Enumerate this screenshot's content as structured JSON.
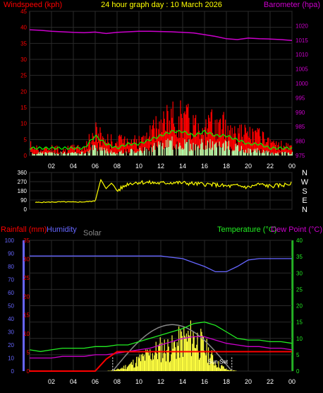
{
  "colors": {
    "windspeed": "#ff0000",
    "gust_fill": "#ff0000",
    "avg_wind": "#00ff00",
    "wind_fill": "#aaffaa",
    "barometer": "#cc00cc",
    "direction": "#ffff00",
    "rainfall": "#ff0000",
    "humidity": "#6666ff",
    "solar": "#888888",
    "solar_fill": "#ffff40",
    "temperature": "#22ee22",
    "dewpoint": "#cc00cc",
    "grid": "#2a2a2a",
    "title": "#ffff00",
    "white": "#ffffff"
  },
  "chart_data": [
    {
      "id": "wind-baro",
      "type": "area",
      "title": "24 hour graph day : 10 March 2026",
      "left_axis_label": "Windspeed (kph)",
      "right_axis_label": "Barometer (hpa)",
      "x_ticks": [
        "02",
        "04",
        "06",
        "08",
        "10",
        "12",
        "14",
        "16",
        "18",
        "20",
        "22",
        "00"
      ],
      "left_ticks": [
        0,
        5,
        10,
        15,
        20,
        25,
        30,
        35,
        40,
        45
      ],
      "left_ylim": [
        0,
        45
      ],
      "right_ticks": [
        975,
        980,
        985,
        990,
        995,
        1000,
        1005,
        1010,
        1015,
        1020
      ],
      "right_ylim": [
        975,
        1025
      ],
      "hours": [
        0,
        1,
        2,
        3,
        4,
        5,
        6,
        7,
        8,
        9,
        10,
        11,
        12,
        13,
        14,
        15,
        16,
        17,
        18,
        19,
        20,
        21,
        22,
        23,
        24
      ],
      "series": [
        {
          "name": "Barometer",
          "values": [
            1018.6,
            1018.4,
            1018.1,
            1017.9,
            1017.7,
            1017.6,
            1017.8,
            1017.3,
            1017.7,
            1017.9,
            1018.1,
            1018.1,
            1018.0,
            1017.9,
            1017.7,
            1017.5,
            1016.9,
            1016.3,
            1015.5,
            1015.2,
            1015.7,
            1015.5,
            1015.4,
            1015.2,
            1014.9
          ]
        },
        {
          "name": "Gust",
          "values": [
            4,
            2,
            3,
            2,
            3,
            3,
            9,
            6,
            5,
            7,
            5,
            8,
            12,
            14,
            15,
            12,
            13,
            11,
            11,
            9,
            8,
            7,
            4,
            4,
            3
          ]
        },
        {
          "name": "Average",
          "values": [
            1,
            1,
            1,
            1,
            1,
            1,
            4,
            2,
            1,
            2,
            2,
            3,
            4,
            5,
            5,
            4,
            5,
            4,
            4,
            3,
            2,
            2,
            1,
            1,
            1
          ]
        }
      ]
    },
    {
      "id": "wind-direction",
      "type": "line",
      "left_ticks": [
        0,
        90,
        180,
        270,
        360
      ],
      "ylim": [
        0,
        360
      ],
      "compass_labels": [
        "N",
        "W",
        "S",
        "E",
        "N"
      ],
      "hours": [
        0,
        1,
        2,
        3,
        4,
        5,
        6,
        6.5,
        7,
        7.5,
        8,
        9,
        10,
        11,
        12,
        13,
        14,
        15,
        16,
        17,
        18,
        19,
        20,
        21,
        22,
        23,
        24
      ],
      "values": [
        65,
        68,
        70,
        72,
        70,
        72,
        80,
        290,
        200,
        260,
        180,
        250,
        265,
        260,
        255,
        262,
        258,
        250,
        245,
        240,
        225,
        230,
        215,
        245,
        225,
        235,
        250
      ]
    },
    {
      "id": "temp-humidity",
      "type": "line",
      "label_rainfall": "Rainfall (mm)",
      "label_humidity": "Humidity",
      "label_solar": "Solar",
      "label_temperature": "Temperature (°C)",
      "label_dewpoint": "Dew Point (°C)",
      "annotation_sunset": "Sun Set",
      "humidity_ticks": [
        0,
        10,
        20,
        30,
        40,
        50,
        60,
        70,
        80,
        90,
        100
      ],
      "humidity_ylim": [
        0,
        100
      ],
      "rain_ticks": [
        0,
        5,
        10,
        15,
        20,
        25,
        30,
        35
      ],
      "rain_ylim": [
        0,
        35
      ],
      "temp_ticks": [
        0,
        5,
        10,
        15,
        20,
        25,
        30,
        35,
        40
      ],
      "temp_ylim": [
        0,
        40
      ],
      "hours": [
        0,
        1,
        2,
        3,
        4,
        5,
        6,
        7,
        8,
        9,
        10,
        11,
        12,
        13,
        14,
        15,
        16,
        17,
        18,
        19,
        20,
        21,
        22,
        23,
        24
      ],
      "series": [
        {
          "name": "Humidity",
          "values": [
            88,
            88,
            88,
            88,
            88,
            88,
            88,
            88,
            88,
            88,
            88,
            88,
            88,
            87,
            86,
            83,
            80,
            76,
            76,
            80,
            85,
            86,
            86,
            86,
            86
          ]
        },
        {
          "name": "Temperature",
          "values": [
            6.5,
            6,
            6.5,
            7,
            7,
            7,
            7.5,
            7.5,
            8,
            8,
            9,
            10,
            11,
            12,
            13,
            14.5,
            15,
            14,
            12,
            10,
            9.5,
            9.5,
            9,
            9,
            8.5
          ]
        },
        {
          "name": "Dew Point",
          "values": [
            4,
            4,
            4,
            4.5,
            4.5,
            4.5,
            5,
            5,
            5.5,
            6,
            6.5,
            7,
            8,
            9,
            10,
            10.5,
            10.5,
            9.5,
            8.5,
            8,
            7.5,
            7.5,
            7,
            7,
            6.5
          ]
        },
        {
          "name": "Rainfall",
          "values": [
            0,
            0,
            0,
            0,
            0,
            0,
            0,
            3.2,
            5.2,
            5.2,
            5.2,
            5.2,
            5.2,
            5.2,
            5.2,
            5.2,
            5.2,
            5.2,
            5.2,
            5.2,
            5.2,
            5.2,
            5.2,
            5.2,
            5.2
          ]
        },
        {
          "name": "Solar",
          "values": [
            0,
            0,
            0,
            0,
            0,
            0,
            0,
            0,
            0.5,
            2,
            4,
            6,
            8,
            8,
            11,
            12,
            8,
            3,
            0.5,
            0,
            0,
            0,
            0,
            0,
            0
          ]
        }
      ]
    }
  ]
}
